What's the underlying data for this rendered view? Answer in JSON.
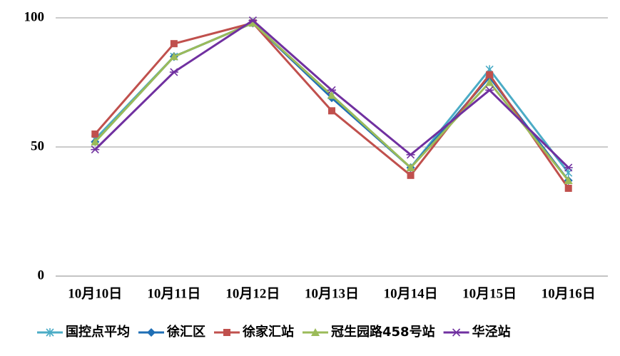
{
  "chart_data": {
    "type": "line",
    "categories": [
      "10月10日",
      "10月11日",
      "10月12日",
      "10月13日",
      "10月14日",
      "10月15日",
      "10月16日"
    ],
    "series": [
      {
        "name": "国控点平均",
        "color": "#4bacc6",
        "marker": "star",
        "values": [
          53,
          85,
          98,
          70,
          42,
          80,
          40
        ]
      },
      {
        "name": "徐汇区",
        "color": "#1f6fb5",
        "marker": "diamond",
        "values": [
          52,
          85,
          98,
          69,
          42,
          77,
          37
        ]
      },
      {
        "name": "徐家汇站",
        "color": "#c0504d",
        "marker": "square",
        "values": [
          55,
          90,
          98,
          64,
          39,
          78,
          34
        ]
      },
      {
        "name": "冠生园路458号站",
        "color": "#9bbb59",
        "marker": "triangle",
        "values": [
          52,
          85,
          98,
          70,
          42,
          75,
          37
        ]
      },
      {
        "name": "华泾站",
        "color": "#7030a0",
        "marker": "xstar",
        "values": [
          49,
          79,
          99,
          72,
          47,
          72,
          42
        ]
      }
    ],
    "ylim": [
      0,
      100
    ],
    "yticks": [
      0,
      50,
      100
    ],
    "grid": true,
    "legend": "bottom"
  }
}
